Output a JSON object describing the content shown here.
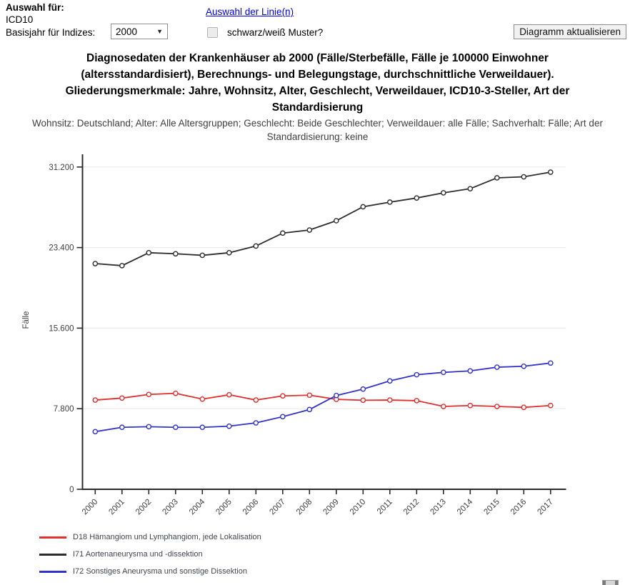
{
  "controls": {
    "selection_label": "Auswahl für:",
    "selection_value": "ICD10",
    "base_year_label": "Basisjahr für Indizes:",
    "base_year_value": "2000",
    "line_selection_link": "Auswahl der Linie(n)",
    "bw_pattern_label": "schwarz/weiß Muster?",
    "bw_pattern_checked": false,
    "update_button_label": "Diagramm aktualisieren",
    "select_arrow_icon": "▼"
  },
  "chart_header": {
    "title": "Diagnosedaten der Krankenhäuser ab 2000 (Fälle/Sterbefälle, Fälle je 100000 Einwohner (altersstandardisiert), Berechnungs- und Belegungstage, durchschnittliche Verweildauer). Gliederungsmerkmale: Jahre, Wohnsitz, Alter, Geschlecht, Verweildauer, ICD10-3-Steller, Art der Standardisierung",
    "subtitle": "Wohnsitz: Deutschland; Alter: Alle Altersgruppen; Geschlecht: Beide Geschlechter; Verweildauer: alle Fälle; Sachverhalt: Fälle; Art der Standardisierung: keine"
  },
  "chart_data": {
    "type": "line",
    "ylabel": "Fälle",
    "xlabel": "",
    "ylim": [
      0,
      31200
    ],
    "yticks": [
      0,
      7800,
      15600,
      23400,
      31200
    ],
    "ytick_labels": [
      "0",
      "7.800",
      "15.600",
      "23.400",
      "31.200"
    ],
    "grid": true,
    "legend_position": "bottom-left",
    "marker": "open-circle",
    "categories": [
      "2000",
      "2001",
      "2002",
      "2003",
      "2004",
      "2005",
      "2006",
      "2007",
      "2008",
      "2009",
      "2010",
      "2011",
      "2012",
      "2013",
      "2014",
      "2015",
      "2016",
      "2017"
    ],
    "series": [
      {
        "name": "D18 Hämangiom und Lymphangiom, jede Lokalisation",
        "color": "#e12f2f",
        "values": [
          8640,
          8830,
          9180,
          9290,
          8730,
          9150,
          8640,
          9040,
          9110,
          8710,
          8620,
          8640,
          8580,
          8020,
          8110,
          8020,
          7930,
          8110
        ]
      },
      {
        "name": "I71 Aortenaneurysma und -dissektion",
        "color": "#2d2d2d",
        "values": [
          21850,
          21650,
          22900,
          22800,
          22650,
          22900,
          23550,
          24800,
          25100,
          26000,
          27350,
          27800,
          28200,
          28700,
          29100,
          30150,
          30250,
          30700
        ]
      },
      {
        "name": "I72 Sonstiges Aneurysma und sonstige Dissektion",
        "color": "#3333cc",
        "values": [
          5580,
          6000,
          6060,
          6000,
          6000,
          6110,
          6430,
          7030,
          7720,
          9080,
          9700,
          10490,
          11090,
          11320,
          11460,
          11820,
          11910,
          12220
        ]
      }
    ],
    "axis_color": "#2b2b2b",
    "gridline_color": "#ececec",
    "tick_label_color": "#3f3f3f"
  }
}
